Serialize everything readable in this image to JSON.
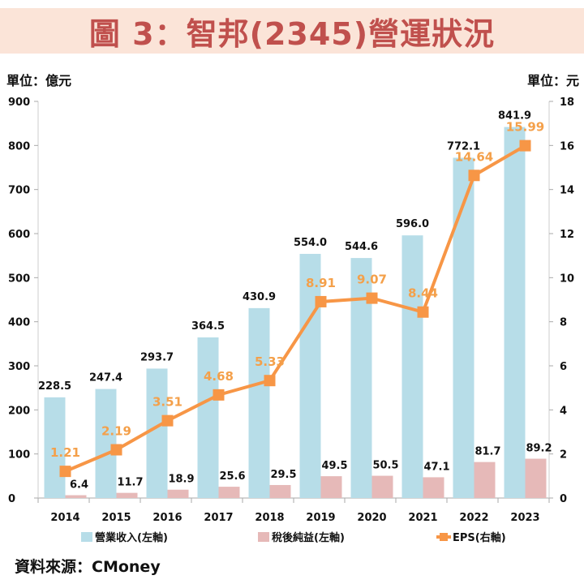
{
  "title": "圖 3：智邦(2345)營運狀況",
  "left_unit": "單位：億元",
  "right_unit": "單位：元",
  "source": "資料來源：CMoney",
  "colors": {
    "revenue": "#b7dde8",
    "net_income": "#e6b9b8",
    "eps": "#f79646",
    "title": "#c0504d",
    "title_bg": "#fbe4d8"
  },
  "chart_data": {
    "type": "bar+line",
    "categories": [
      "2014",
      "2015",
      "2016",
      "2017",
      "2018",
      "2019",
      "2020",
      "2021",
      "2022",
      "2023"
    ],
    "series": [
      {
        "name": "營業收入(左軸)",
        "type": "bar",
        "axis": "left",
        "values": [
          228.5,
          247.4,
          293.7,
          364.5,
          430.9,
          554.0,
          544.6,
          596.0,
          772.1,
          841.9
        ],
        "labels": [
          "228.5",
          "247.4",
          "293.7",
          "364.5",
          "430.9",
          "554.0",
          "544.6",
          "596.0",
          "772.1",
          "841.9"
        ]
      },
      {
        "name": "稅後純益(左軸)",
        "type": "bar",
        "axis": "left",
        "values": [
          6.4,
          11.7,
          18.9,
          25.6,
          29.5,
          49.5,
          50.5,
          47.1,
          81.7,
          89.2
        ],
        "labels": [
          "6.4",
          "11.7",
          "18.9",
          "25.6",
          "29.5",
          "49.5",
          "50.5",
          "47.1",
          "81.7",
          "89.2"
        ]
      },
      {
        "name": "EPS(右軸)",
        "type": "line",
        "axis": "right",
        "values": [
          1.21,
          2.19,
          3.51,
          4.68,
          5.33,
          8.91,
          9.07,
          8.44,
          14.64,
          15.99
        ],
        "labels": [
          "1.21",
          "2.19",
          "3.51",
          "4.68",
          "5.33",
          "8.91",
          "9.07",
          "8.44",
          "14.64",
          "15.99"
        ]
      }
    ],
    "left_axis": {
      "range": [
        0,
        900
      ],
      "ticks": [
        "0",
        "100",
        "200",
        "300",
        "400",
        "500",
        "600",
        "700",
        "800",
        "900"
      ]
    },
    "right_axis": {
      "range": [
        0,
        18
      ],
      "ticks": [
        "0",
        "2",
        "4",
        "6",
        "8",
        "10",
        "12",
        "14",
        "16",
        "18"
      ]
    },
    "grid": false,
    "legend": "bottom"
  }
}
